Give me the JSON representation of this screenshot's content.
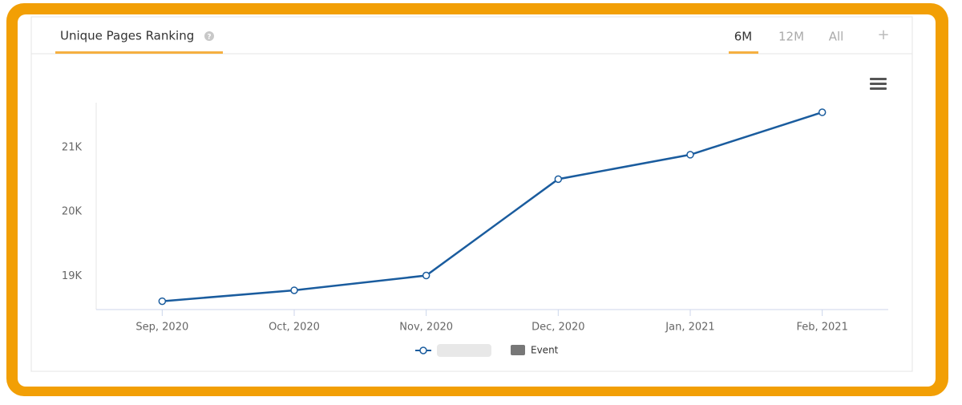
{
  "header": {
    "title": "Unique Pages Ranking",
    "tabs": [
      "6M",
      "12M",
      "All"
    ]
  },
  "chart_data": {
    "type": "line",
    "categories": [
      "Sep, 2020",
      "Oct, 2020",
      "Nov, 2020",
      "Dec, 2020",
      "Jan, 2021",
      "Feb, 2021"
    ],
    "series": [
      {
        "color": "#1a5c9e",
        "values": [
          18610,
          18780,
          19010,
          20510,
          20890,
          21550
        ]
      }
    ],
    "event_legend": {
      "name": "Event",
      "color": "#777777"
    },
    "ylim": [
      18480,
      21700
    ],
    "yticks": [
      {
        "value": 19000,
        "label": "19K"
      },
      {
        "value": 20000,
        "label": "20K"
      },
      {
        "value": 21000,
        "label": "21K"
      }
    ],
    "grid": false
  }
}
